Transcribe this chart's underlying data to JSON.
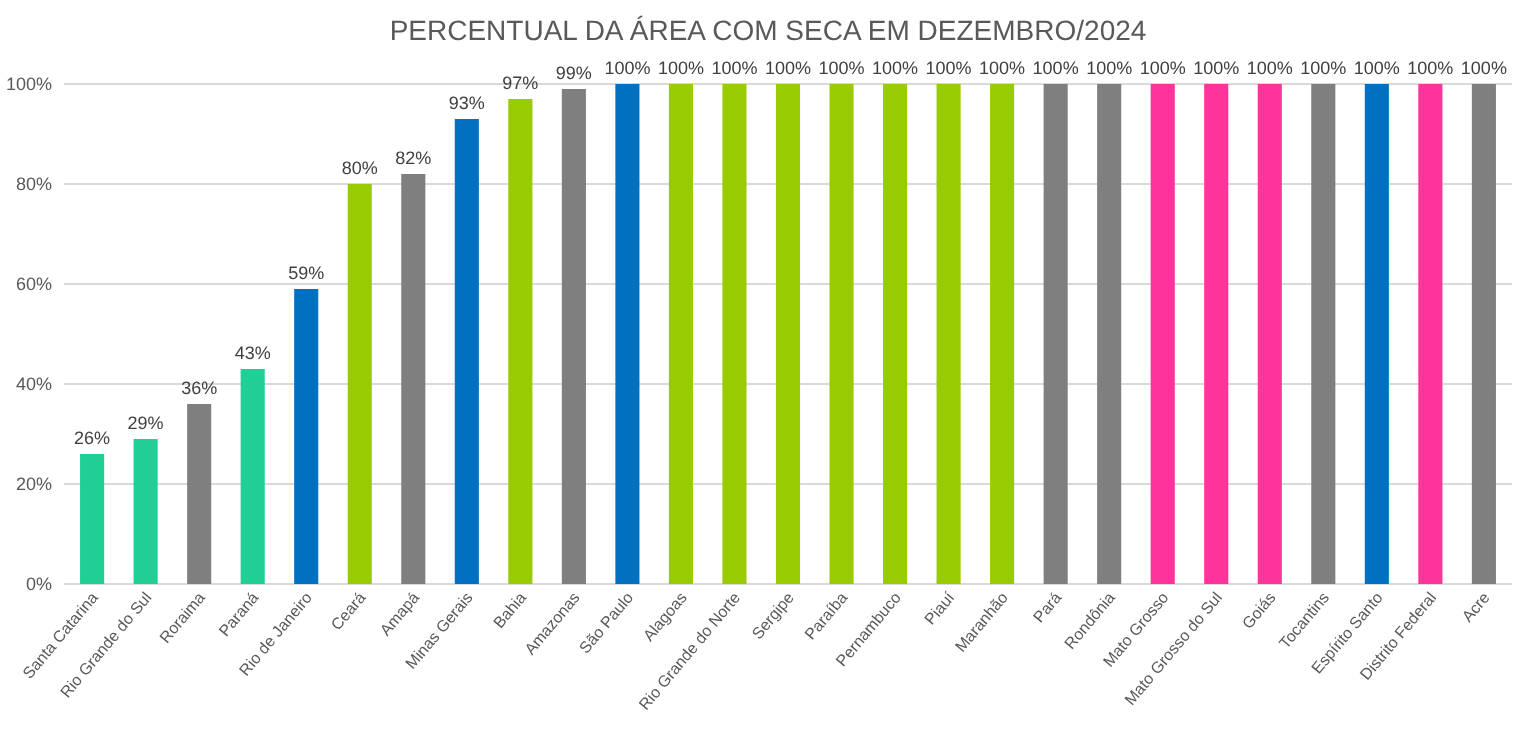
{
  "chart_data": {
    "type": "bar",
    "title": "PERCENTUAL DA ÁREA COM SECA EM DEZEMBRO/2024",
    "categories": [
      "Santa Catarina",
      "Rio Grande do Sul",
      "Roraima",
      "Paraná",
      "Rio de Janeiro",
      "Ceará",
      "Amapá",
      "Minas Gerais",
      "Bahia",
      "Amazonas",
      "São Paulo",
      "Alagoas",
      "Rio Grande do Norte",
      "Sergipe",
      "Paraíba",
      "Pernambuco",
      "Piauí",
      "Maranhão",
      "Pará",
      "Rondônia",
      "Mato Grosso",
      "Mato Grosso do Sul",
      "Goiás",
      "Tocantins",
      "Espírito Santo",
      "Distrito Federal",
      "Acre"
    ],
    "values": [
      26,
      29,
      36,
      43,
      59,
      80,
      82,
      93,
      97,
      99,
      100,
      100,
      100,
      100,
      100,
      100,
      100,
      100,
      100,
      100,
      100,
      100,
      100,
      100,
      100,
      100,
      100
    ],
    "value_labels": [
      "26%",
      "29%",
      "36%",
      "43%",
      "59%",
      "80%",
      "82%",
      "93%",
      "97%",
      "99%",
      "100%",
      "100%",
      "100%",
      "100%",
      "100%",
      "100%",
      "100%",
      "100%",
      "100%",
      "100%",
      "100%",
      "100%",
      "100%",
      "100%",
      "100%",
      "100%",
      "100%"
    ],
    "colors": [
      "#1fcf95",
      "#1fcf95",
      "#7f7f7f",
      "#1fcf95",
      "#0070c0",
      "#99cc00",
      "#7f7f7f",
      "#0070c0",
      "#99cc00",
      "#7f7f7f",
      "#0070c0",
      "#99cc00",
      "#99cc00",
      "#99cc00",
      "#99cc00",
      "#99cc00",
      "#99cc00",
      "#99cc00",
      "#7f7f7f",
      "#7f7f7f",
      "#ff3399",
      "#ff3399",
      "#ff3399",
      "#7f7f7f",
      "#0070c0",
      "#ff3399",
      "#7f7f7f"
    ],
    "ylim": [
      0,
      100
    ],
    "yticks": [
      {
        "value": 0,
        "label": "0%"
      },
      {
        "value": 20,
        "label": "20%"
      },
      {
        "value": 40,
        "label": "40%"
      },
      {
        "value": 60,
        "label": "60%"
      },
      {
        "value": 80,
        "label": "80%"
      },
      {
        "value": 100,
        "label": "100%"
      }
    ],
    "grid": "y"
  }
}
